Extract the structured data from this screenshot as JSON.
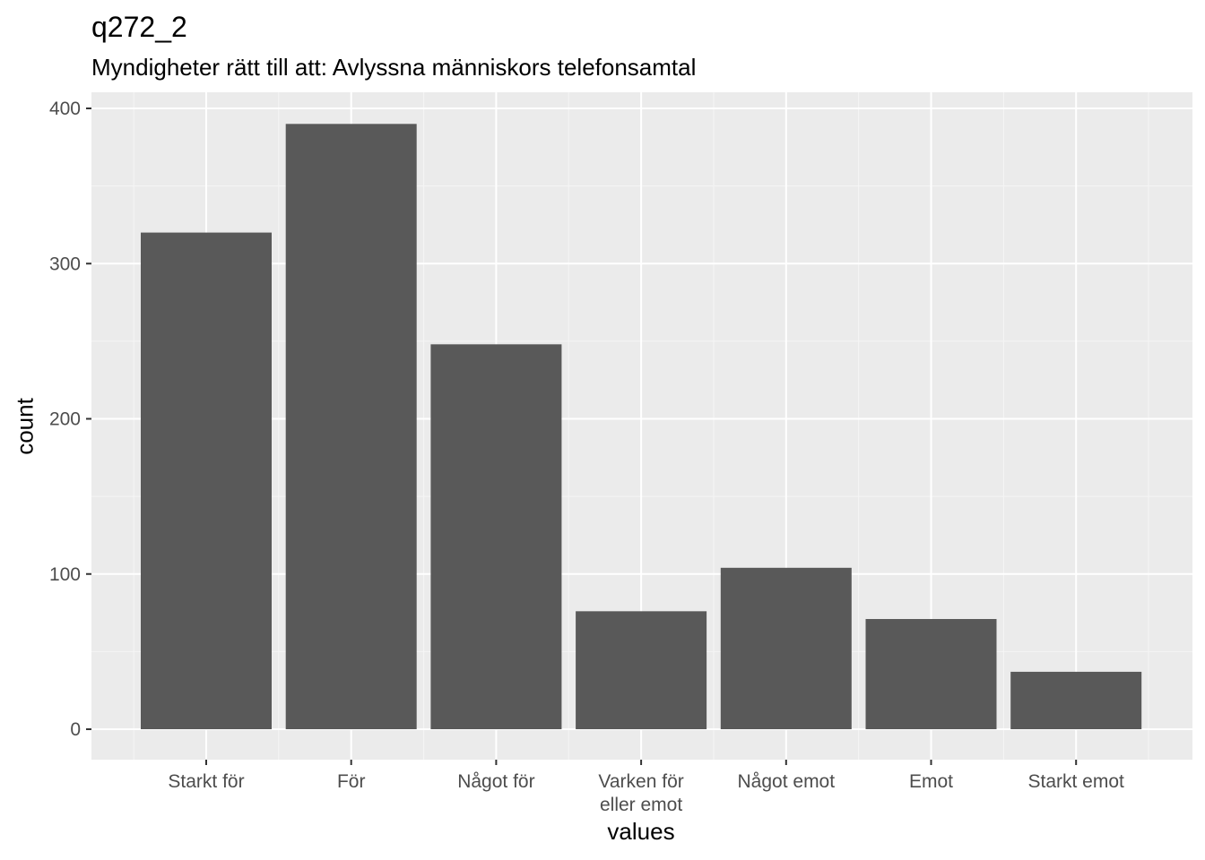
{
  "chart_data": {
    "type": "bar",
    "title": "q272_2",
    "subtitle": "Myndigheter rätt till att: Avlyssna människors telefonsamtal",
    "xlabel": "values",
    "ylabel": "count",
    "categories": [
      [
        "Starkt för"
      ],
      [
        "För"
      ],
      [
        "Något för"
      ],
      [
        "Varken för",
        "eller emot"
      ],
      [
        "Något emot"
      ],
      [
        "Emot"
      ],
      [
        "Starkt emot"
      ]
    ],
    "values": [
      320,
      390,
      248,
      76,
      104,
      71,
      37
    ],
    "ylim": [
      0,
      400
    ],
    "yticks": [
      0,
      100,
      200,
      300,
      400
    ],
    "grid": true,
    "colors": {
      "bar": "#595959",
      "panel": "#ebebeb",
      "grid_major": "#ffffff",
      "grid_minor": "#f5f5f5",
      "tick_text": "#4d4d4d",
      "tick_mark": "#333333"
    }
  }
}
